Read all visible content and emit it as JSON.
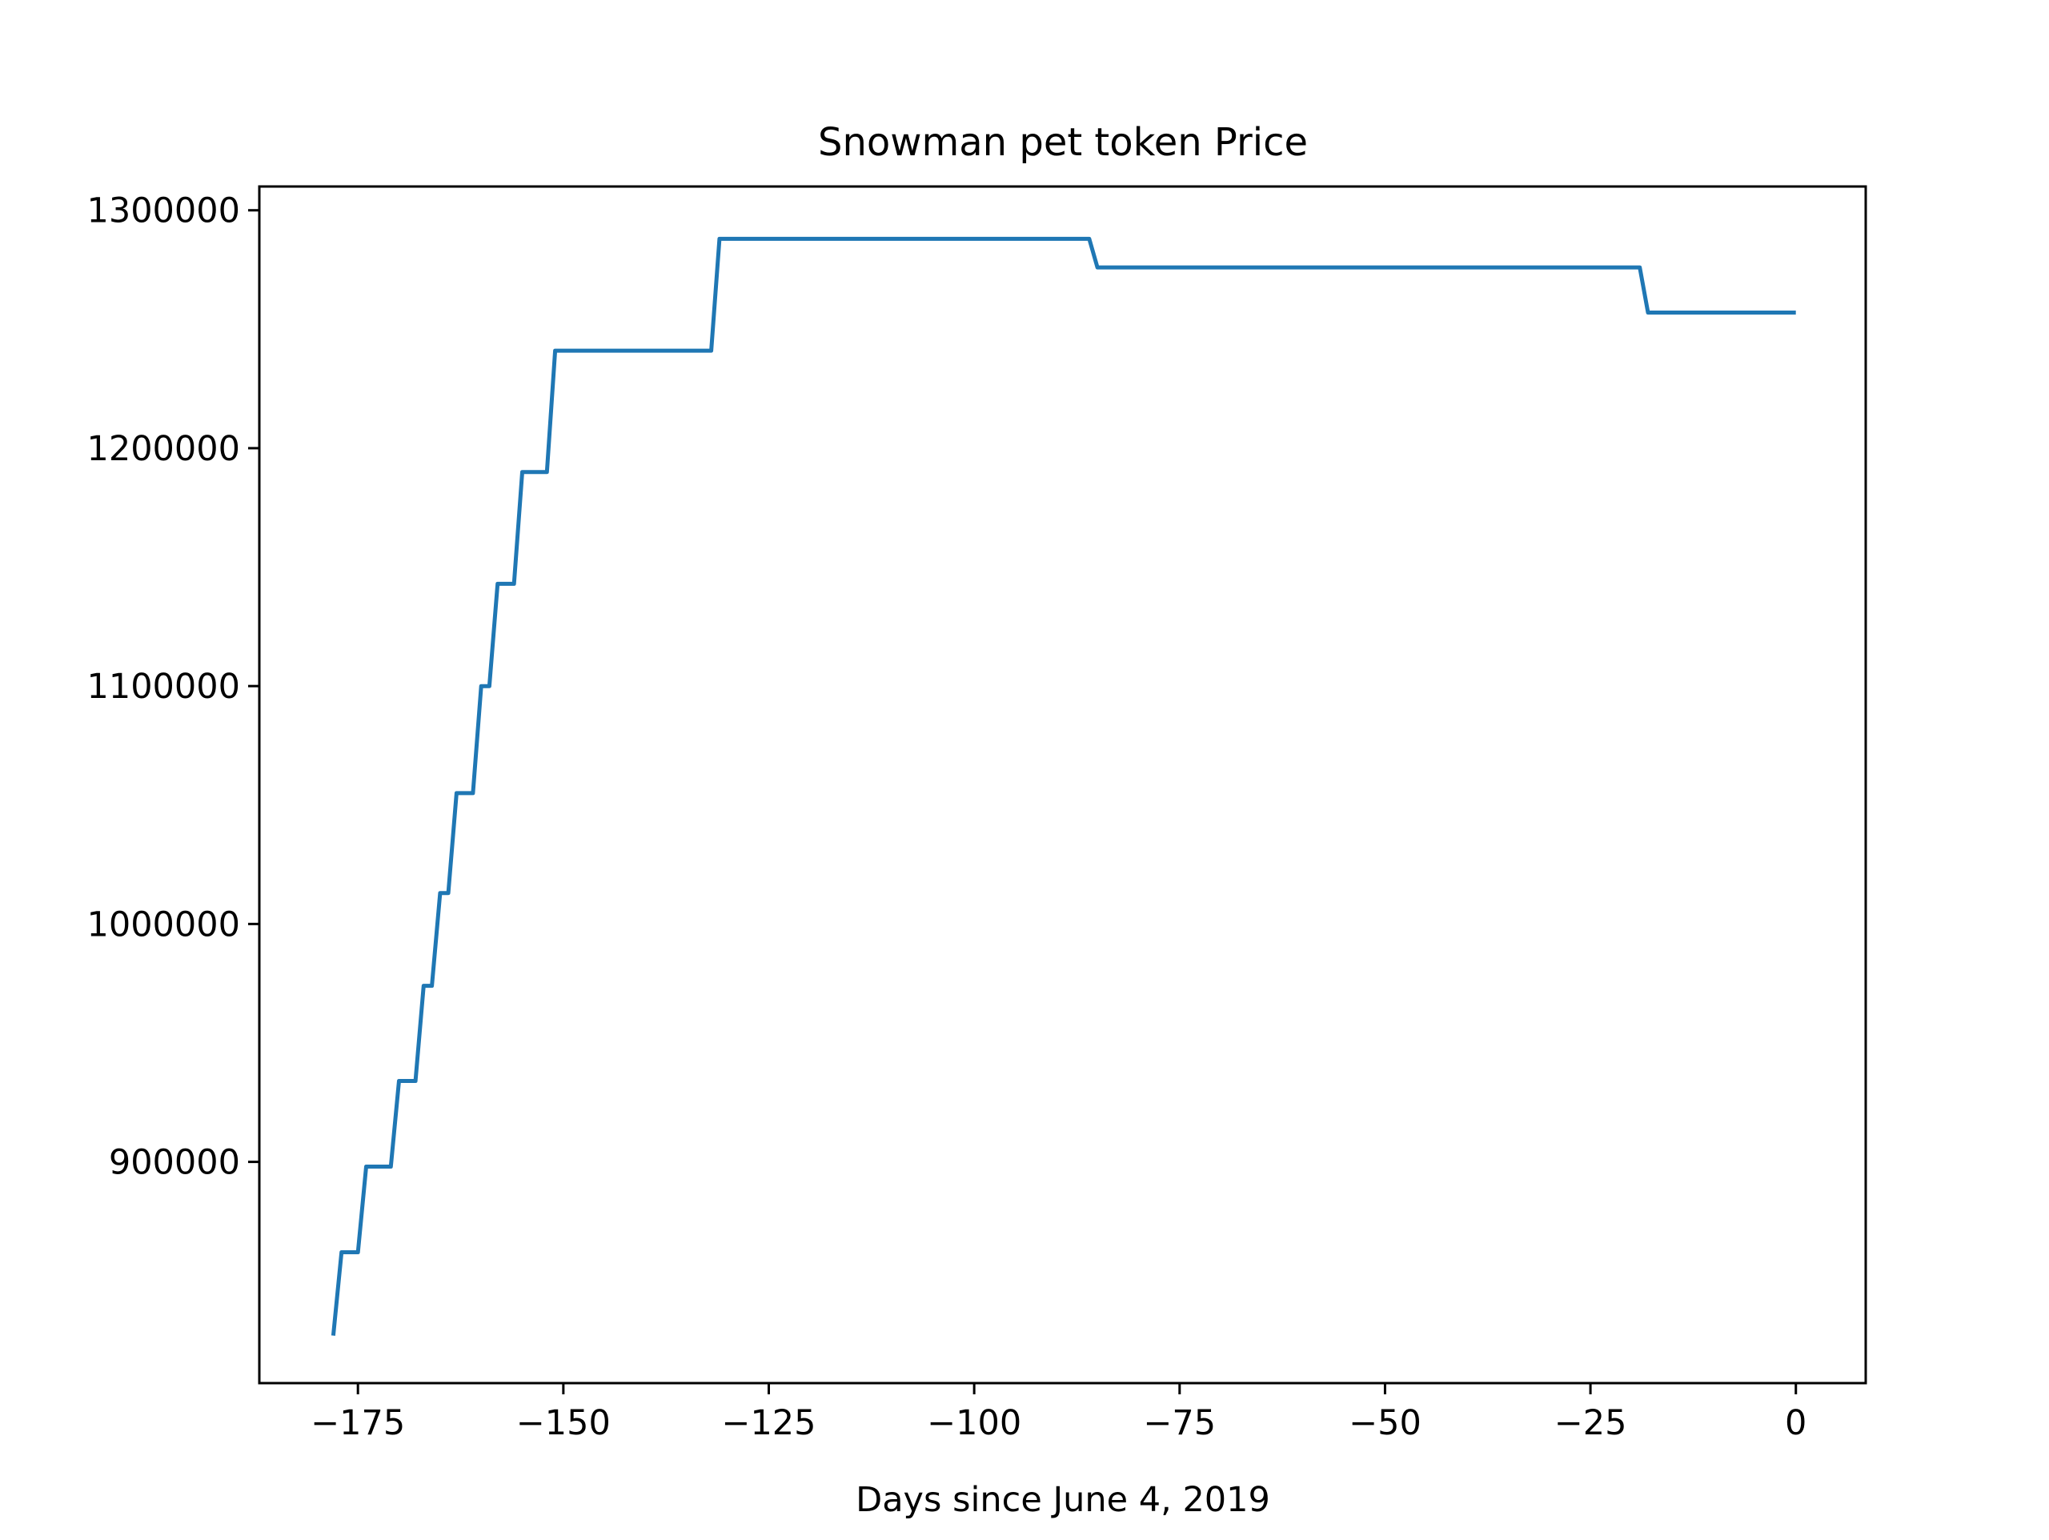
{
  "chart_data": {
    "type": "line",
    "title": "Snowman pet token Price",
    "xlabel": "Days since June 4, 2019",
    "ylabel": "",
    "xlim": [
      -187,
      8.5
    ],
    "ylim": [
      807000,
      1310000
    ],
    "x_ticks": [
      -175,
      -150,
      -125,
      -100,
      -75,
      -50,
      -25,
      0
    ],
    "x_tick_labels": [
      "−175",
      "−150",
      "−125",
      "−100",
      "−75",
      "−50",
      "−25",
      "0"
    ],
    "y_ticks": [
      900000,
      1000000,
      1100000,
      1200000,
      1300000
    ],
    "y_tick_labels": [
      "900000",
      "1000000",
      "1100000",
      "1200000",
      "1300000"
    ],
    "grid": false,
    "legend": "none",
    "series_color": "#1f77b4",
    "series": [
      {
        "x": [
          -178,
          -177,
          -175,
          -174,
          -171,
          -170,
          -168,
          -167,
          -166,
          -165,
          -164,
          -163,
          -161,
          -160,
          -159,
          -158,
          -156,
          -155,
          -152,
          -151,
          -132,
          -131,
          -86,
          -85,
          -19,
          -18,
          0
        ],
        "y": [
          827000,
          862000,
          862000,
          898000,
          898000,
          934000,
          934000,
          974000,
          974000,
          1013000,
          1013000,
          1055000,
          1055000,
          1100000,
          1100000,
          1143000,
          1143000,
          1190000,
          1190000,
          1241000,
          1241000,
          1288000,
          1288000,
          1276000,
          1276000,
          1257000,
          1257000
        ]
      }
    ]
  }
}
